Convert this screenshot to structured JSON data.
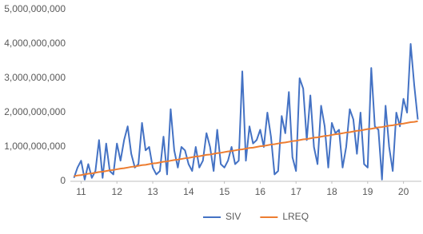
{
  "chart_data": {
    "type": "line",
    "x": [
      10.8,
      10.9,
      11.0,
      11.1,
      11.2,
      11.3,
      11.4,
      11.5,
      11.6,
      11.7,
      11.8,
      11.9,
      12.0,
      12.1,
      12.2,
      12.3,
      12.4,
      12.5,
      12.6,
      12.7,
      12.8,
      12.9,
      13.0,
      13.1,
      13.2,
      13.3,
      13.4,
      13.5,
      13.6,
      13.7,
      13.8,
      13.9,
      14.0,
      14.1,
      14.2,
      14.3,
      14.4,
      14.5,
      14.6,
      14.7,
      14.8,
      14.9,
      15.0,
      15.1,
      15.2,
      15.3,
      15.4,
      15.5,
      15.6,
      15.7,
      15.8,
      15.9,
      16.0,
      16.1,
      16.2,
      16.3,
      16.4,
      16.5,
      16.6,
      16.7,
      16.8,
      16.9,
      17.0,
      17.1,
      17.2,
      17.3,
      17.4,
      17.5,
      17.6,
      17.7,
      17.8,
      17.9,
      18.0,
      18.1,
      18.2,
      18.3,
      18.4,
      18.5,
      18.6,
      18.7,
      18.8,
      18.9,
      19.0,
      19.1,
      19.2,
      19.3,
      19.4,
      19.5,
      19.6,
      19.7,
      19.8,
      19.9,
      20.0,
      20.1,
      20.2,
      20.3,
      20.4
    ],
    "series": [
      {
        "name": "SIV",
        "color": "#4472c4",
        "values": [
          100000000.0,
          400000000.0,
          600000000.0,
          50000000.0,
          500000000.0,
          100000000.0,
          300000000.0,
          1200000000.0,
          100000000.0,
          1100000000.0,
          300000000.0,
          200000000.0,
          1100000000.0,
          600000000.0,
          1200000000.0,
          1600000000.0,
          800000000.0,
          400000000.0,
          500000000.0,
          1700000000.0,
          900000000.0,
          1000000000.0,
          400000000.0,
          200000000.0,
          300000000.0,
          1300000000.0,
          200000000.0,
          2100000000.0,
          900000000.0,
          400000000.0,
          1000000000.0,
          900000000.0,
          500000000.0,
          300000000.0,
          1000000000.0,
          400000000.0,
          600000000.0,
          1400000000.0,
          1000000000.0,
          300000000.0,
          1500000000.0,
          500000000.0,
          400000000.0,
          600000000.0,
          1000000000.0,
          500000000.0,
          600000000.0,
          3200000000.0,
          600000000.0,
          1600000000.0,
          1100000000.0,
          1200000000.0,
          1500000000.0,
          1000000000.0,
          2000000000.0,
          1300000000.0,
          200000000.0,
          300000000.0,
          1900000000.0,
          1400000000.0,
          2600000000.0,
          700000000.0,
          300000000.0,
          3000000000.0,
          2700000000.0,
          1200000000.0,
          2500000000.0,
          1000000000.0,
          500000000.0,
          2200000000.0,
          1600000000.0,
          400000000.0,
          1700000000.0,
          1400000000.0,
          1500000000.0,
          400000000.0,
          1000000000.0,
          2100000000.0,
          1800000000.0,
          800000000.0,
          2000000000.0,
          500000000.0,
          400000000.0,
          3300000000.0,
          1600000000.0,
          1500000000.0,
          50000000.0,
          2200000000.0,
          1000000000.0,
          300000000.0,
          2000000000.0,
          1600000000.0,
          2400000000.0,
          2000000000.0,
          4000000000.0,
          2800000000.0,
          1800000000.0
        ]
      },
      {
        "name": "LREQ",
        "color": "#ed7d31",
        "values": [
          150000000.0,
          170000000.0,
          180000000.0,
          200000000.0,
          220000000.0,
          230000000.0,
          250000000.0,
          270000000.0,
          280000000.0,
          300000000.0,
          320000000.0,
          330000000.0,
          350000000.0,
          370000000.0,
          380000000.0,
          400000000.0,
          420000000.0,
          430000000.0,
          450000000.0,
          470000000.0,
          480000000.0,
          500000000.0,
          520000000.0,
          530000000.0,
          550000000.0,
          570000000.0,
          580000000.0,
          600000000.0,
          620000000.0,
          630000000.0,
          650000000.0,
          670000000.0,
          680000000.0,
          700000000.0,
          720000000.0,
          730000000.0,
          750000000.0,
          770000000.0,
          780000000.0,
          800000000.0,
          820000000.0,
          830000000.0,
          850000000.0,
          870000000.0,
          880000000.0,
          900000000.0,
          920000000.0,
          930000000.0,
          950000000.0,
          970000000.0,
          980000000.0,
          1000000000.0,
          1020000000.0,
          1030000000.0,
          1050000000.0,
          1070000000.0,
          1080000000.0,
          1100000000.0,
          1120000000.0,
          1130000000.0,
          1150000000.0,
          1170000000.0,
          1180000000.0,
          1200000000.0,
          1220000000.0,
          1230000000.0,
          1250000000.0,
          1270000000.0,
          1280000000.0,
          1300000000.0,
          1320000000.0,
          1330000000.0,
          1350000000.0,
          1370000000.0,
          1380000000.0,
          1400000000.0,
          1420000000.0,
          1430000000.0,
          1450000000.0,
          1470000000.0,
          1480000000.0,
          1500000000.0,
          1520000000.0,
          1530000000.0,
          1550000000.0,
          1570000000.0,
          1580000000.0,
          1600000000.0,
          1620000000.0,
          1630000000.0,
          1650000000.0,
          1670000000.0,
          1680000000.0,
          1700000000.0,
          1720000000.0,
          1730000000.0,
          1750000000.0
        ]
      }
    ],
    "xlim": [
      10.7,
      20.5
    ],
    "xticks": [
      11,
      12,
      13,
      14,
      15,
      16,
      17,
      18,
      19,
      20
    ],
    "ylim": [
      0,
      5000000000
    ],
    "yticks": [
      0,
      {
        "value": 1000000000,
        "label": "1,000,000,000"
      },
      {
        "value": 2000000000,
        "label": "2,000,000,000"
      },
      {
        "value": 3000000000,
        "label": "3,000,000,000"
      },
      {
        "value": 4000000000,
        "label": "4,000,000,000"
      },
      {
        "value": 5000000000,
        "label": "5,000,000,000"
      }
    ],
    "grid": false,
    "legend": "bottom"
  }
}
